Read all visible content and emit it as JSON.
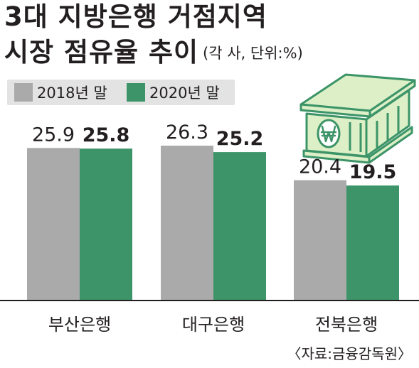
{
  "title": {
    "line1": "3대 지방은행 거점지역",
    "line2": "시장 점유율 추이",
    "unit": "(각 사, 단위:%)"
  },
  "source": "〈자료:금융감독원〉",
  "colors": {
    "series_2018": "#aaaaaa",
    "series_2020": "#3c9468",
    "icon_fill": "#dcefc6",
    "icon_stroke": "#3c9468"
  },
  "icon": "bank-building-won-icon",
  "chart_data": {
    "type": "bar",
    "title": "3대 지방은행 거점지역 시장 점유율 추이",
    "categories": [
      "부산은행",
      "대구은행",
      "전북은행"
    ],
    "series": [
      {
        "name": "2018년 말",
        "values": [
          25.9,
          26.3,
          20.4
        ]
      },
      {
        "name": "2020년 말",
        "values": [
          25.8,
          25.2,
          19.5
        ]
      }
    ],
    "ylim": [
      0,
      30
    ],
    "grid": false,
    "legend": "top-left",
    "data_labels": true,
    "unit": "%"
  }
}
